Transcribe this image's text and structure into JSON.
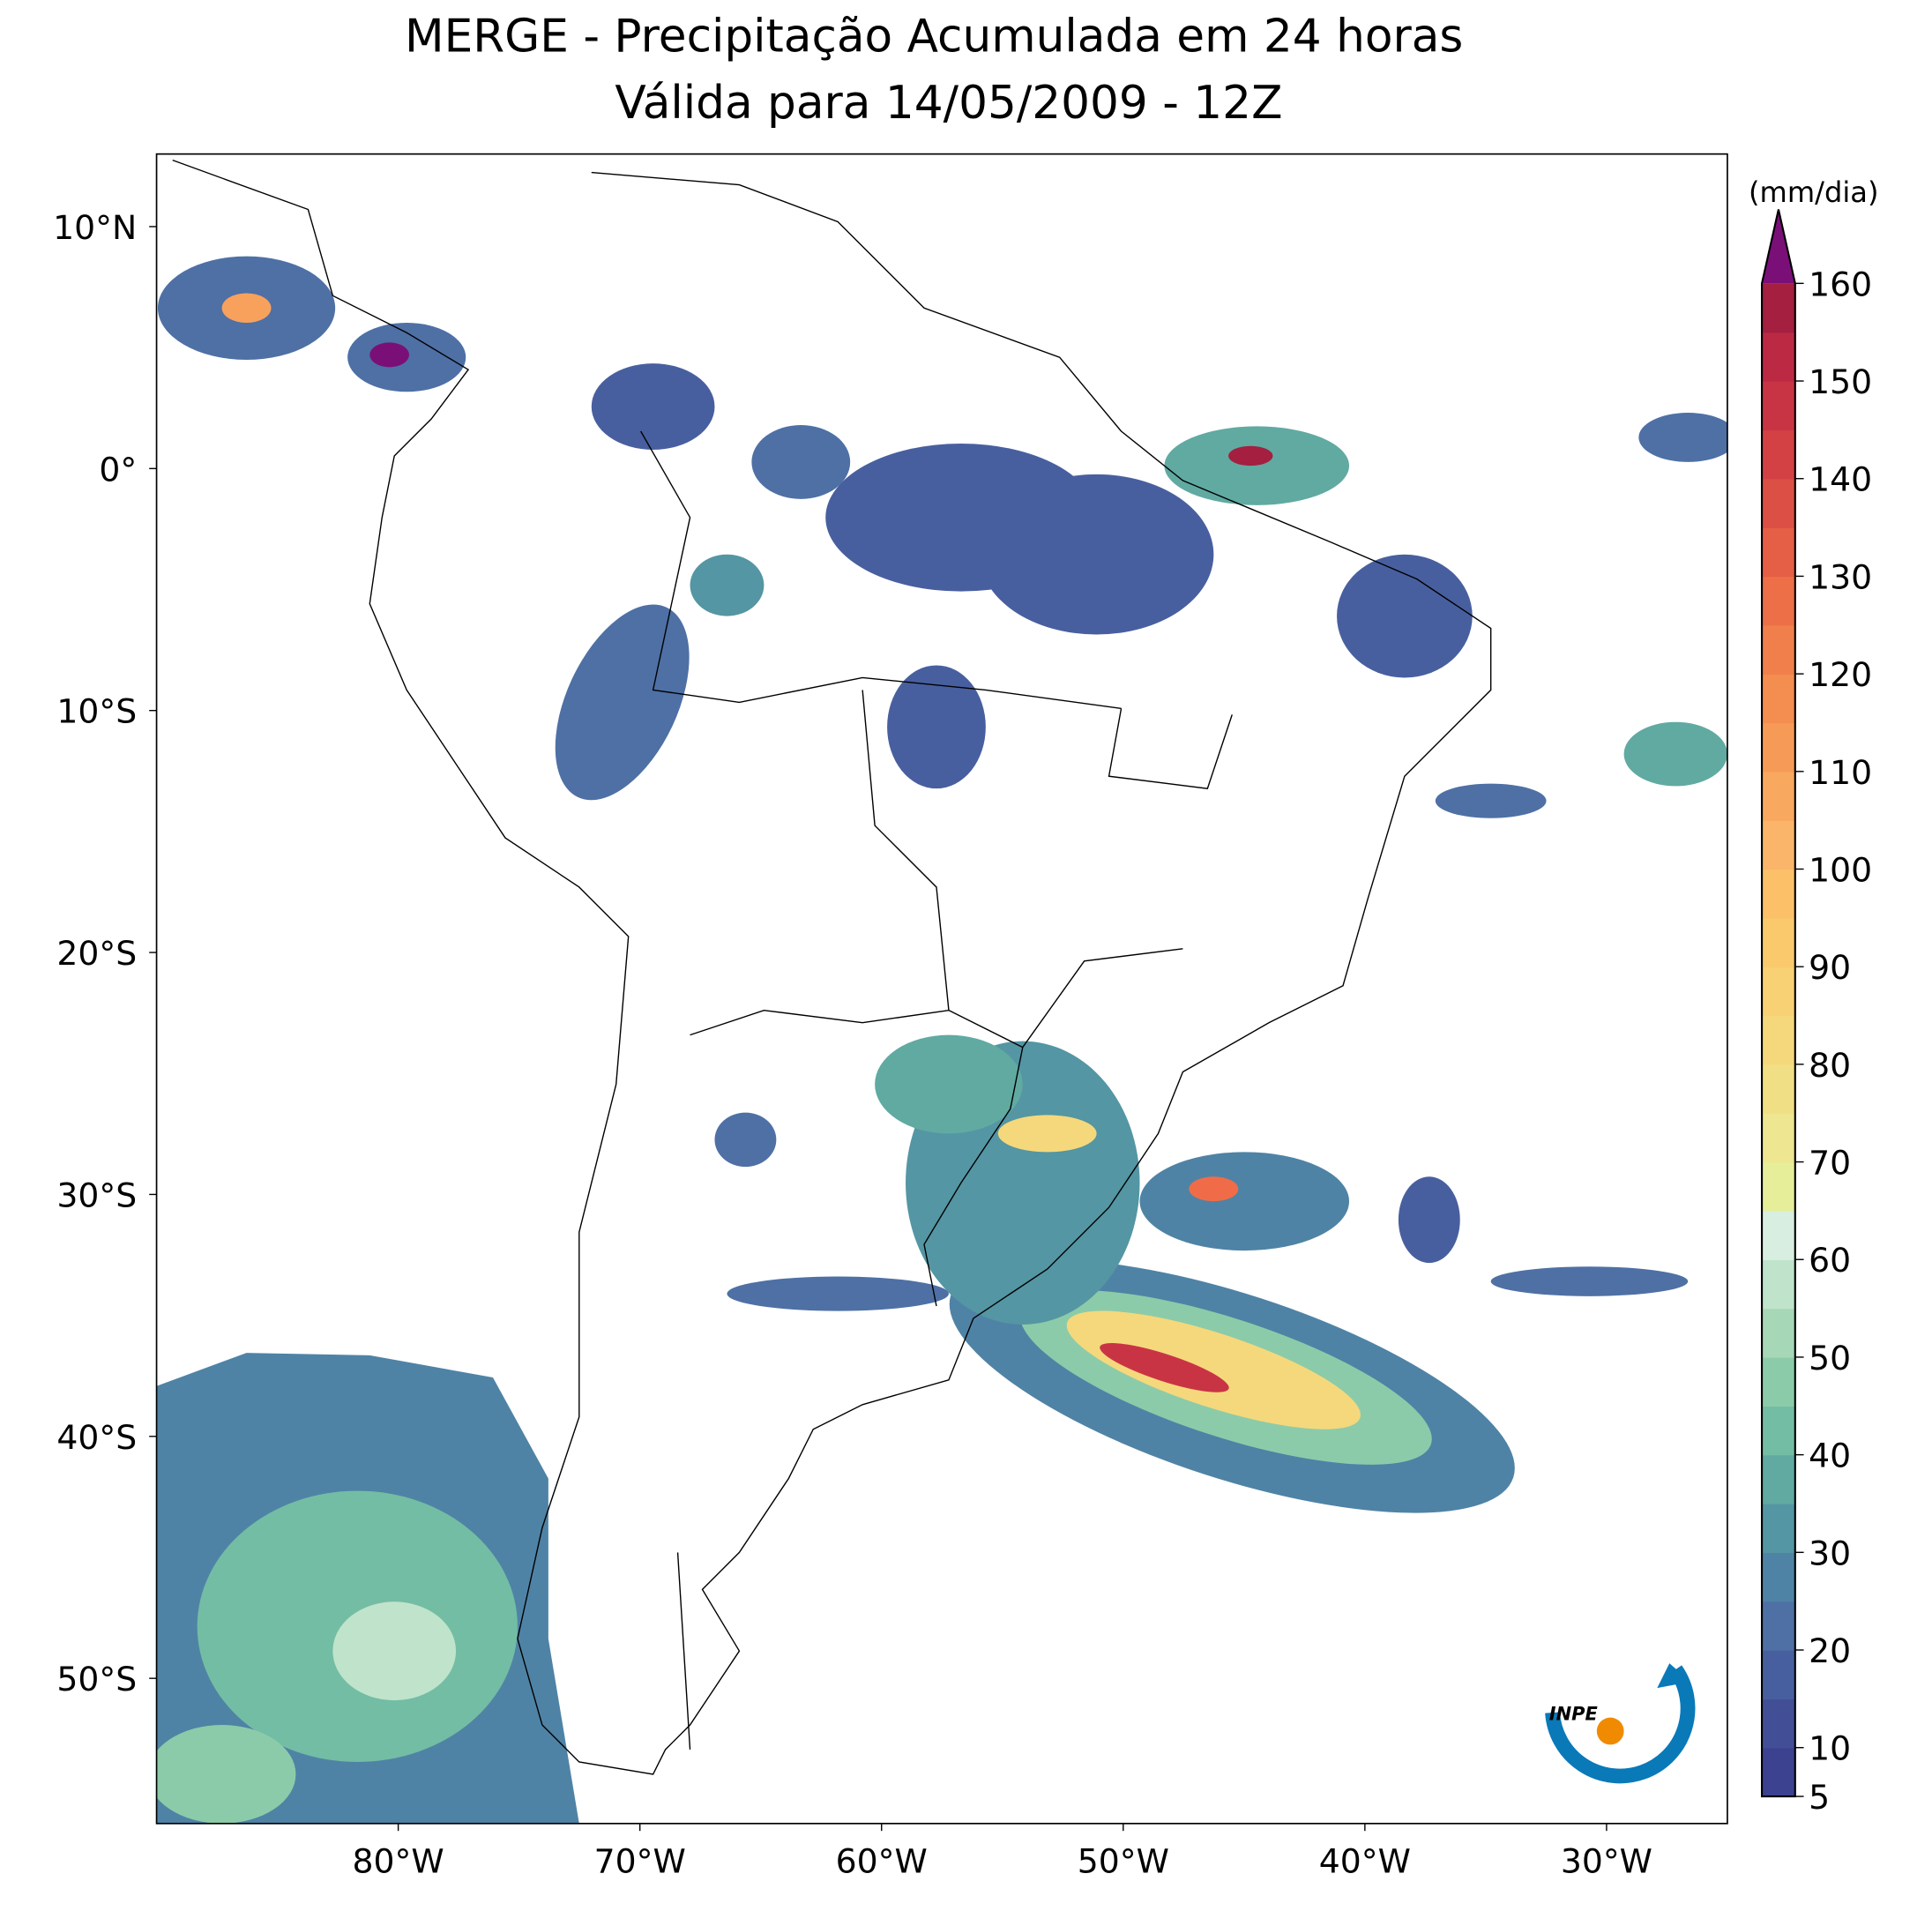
{
  "map": {
    "title": "MERGE - Precipitação Acumulada em 24 horas",
    "subtitle": "Válida para 14/05/2009 - 12Z",
    "xlim": [
      -90,
      -25
    ],
    "ylim": [
      -56,
      13
    ],
    "xticks": [
      {
        "value": -80,
        "label": "80°W"
      },
      {
        "value": -70,
        "label": "70°W"
      },
      {
        "value": -60,
        "label": "60°W"
      },
      {
        "value": -50,
        "label": "50°W"
      },
      {
        "value": -40,
        "label": "40°W"
      },
      {
        "value": -30,
        "label": "30°W"
      }
    ],
    "yticks": [
      {
        "value": 10,
        "label": "10°N"
      },
      {
        "value": 0,
        "label": "0°"
      },
      {
        "value": -10,
        "label": "10°S"
      },
      {
        "value": -20,
        "label": "20°S"
      },
      {
        "value": -30,
        "label": "30°S"
      },
      {
        "value": -40,
        "label": "40°S"
      },
      {
        "value": -50,
        "label": "50°S"
      }
    ],
    "colorbar": {
      "label": "(mm/dia)",
      "clim": [
        5,
        160
      ],
      "ticks": [
        5,
        10,
        20,
        30,
        40,
        50,
        60,
        70,
        80,
        90,
        100,
        110,
        120,
        130,
        140,
        150,
        160
      ],
      "colors": [
        "#3c4190",
        "#424f97",
        "#485f9f",
        "#4e70a5",
        "#4f83a5",
        "#5496a3",
        "#60aaa2",
        "#73bda4",
        "#8ccba9",
        "#a6d7b7",
        "#c0e3cb",
        "#d8eee0",
        "#e6ee9a",
        "#eee690",
        "#f1df85",
        "#f5d87c",
        "#f8d174",
        "#f9c96c",
        "#fbc068",
        "#fab56a",
        "#f8a85f",
        "#f69b57",
        "#f48d50",
        "#f07f4b",
        "#ec6f48",
        "#e55e46",
        "#dc4f45",
        "#d44145",
        "#c93445",
        "#bc2943",
        "#a41f40"
      ],
      "extend_color": "#7b0f78"
    },
    "logo": "INPE"
  }
}
